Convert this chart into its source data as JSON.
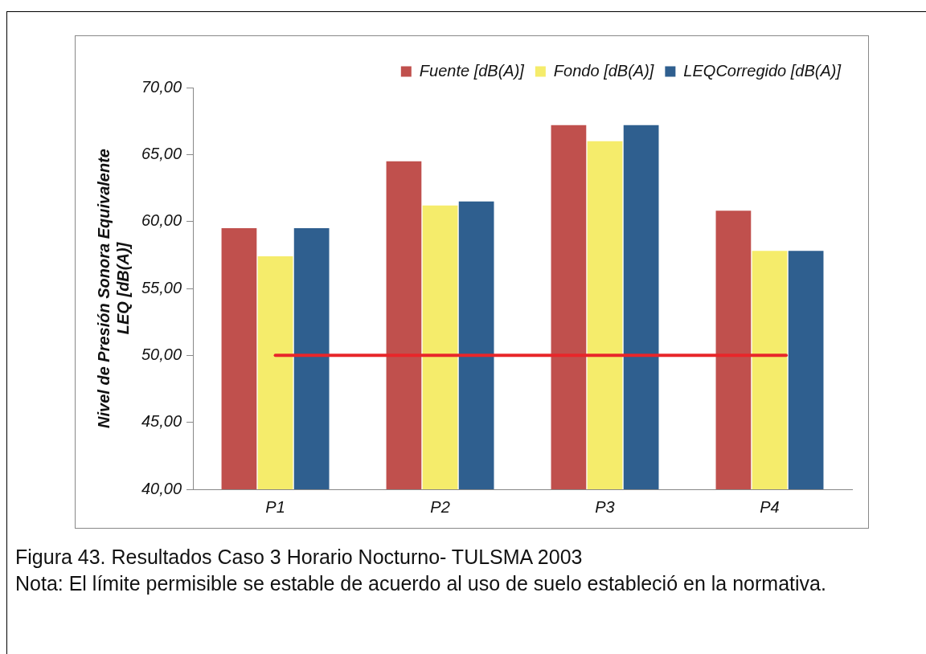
{
  "chart_data": {
    "type": "bar",
    "ylabel": "Nivel de Presión Sonora Equivalente\nLEQ [dB(A)]",
    "categories": [
      "P1",
      "P2",
      "P3",
      "P4"
    ],
    "series": [
      {
        "name": "Fuente [dB(A)]",
        "color": "#c0504d",
        "values": [
          59.5,
          64.5,
          67.2,
          60.8
        ]
      },
      {
        "name": "Fondo [dB(A)]",
        "color": "#f5ec6b",
        "values": [
          57.4,
          61.2,
          66.0,
          57.8
        ]
      },
      {
        "name": "LEQCorregido [dB(A)]",
        "color": "#2f5f8f",
        "values": [
          59.5,
          61.5,
          67.2,
          57.8
        ]
      }
    ],
    "ylim": [
      40,
      70
    ],
    "yticks": [
      {
        "value": 40,
        "label": "40,00"
      },
      {
        "value": 45,
        "label": "45,00"
      },
      {
        "value": 50,
        "label": "50,00"
      },
      {
        "value": 55,
        "label": "55,00"
      },
      {
        "value": 60,
        "label": "60,00"
      },
      {
        "value": 65,
        "label": "65,00"
      },
      {
        "value": 70,
        "label": "70,00"
      }
    ],
    "ref_lines": [
      {
        "axis": "y",
        "value": 50,
        "label": null,
        "color": "#e8262a"
      }
    ],
    "grid": false,
    "legend": "top",
    "annotations": [
      "Figura 43. Resultados Caso 3 Horario Nocturno- TULSMA 2003",
      "Nota: El límite permisible se estable de acuerdo al uso de suelo estableció en la normativa."
    ]
  }
}
